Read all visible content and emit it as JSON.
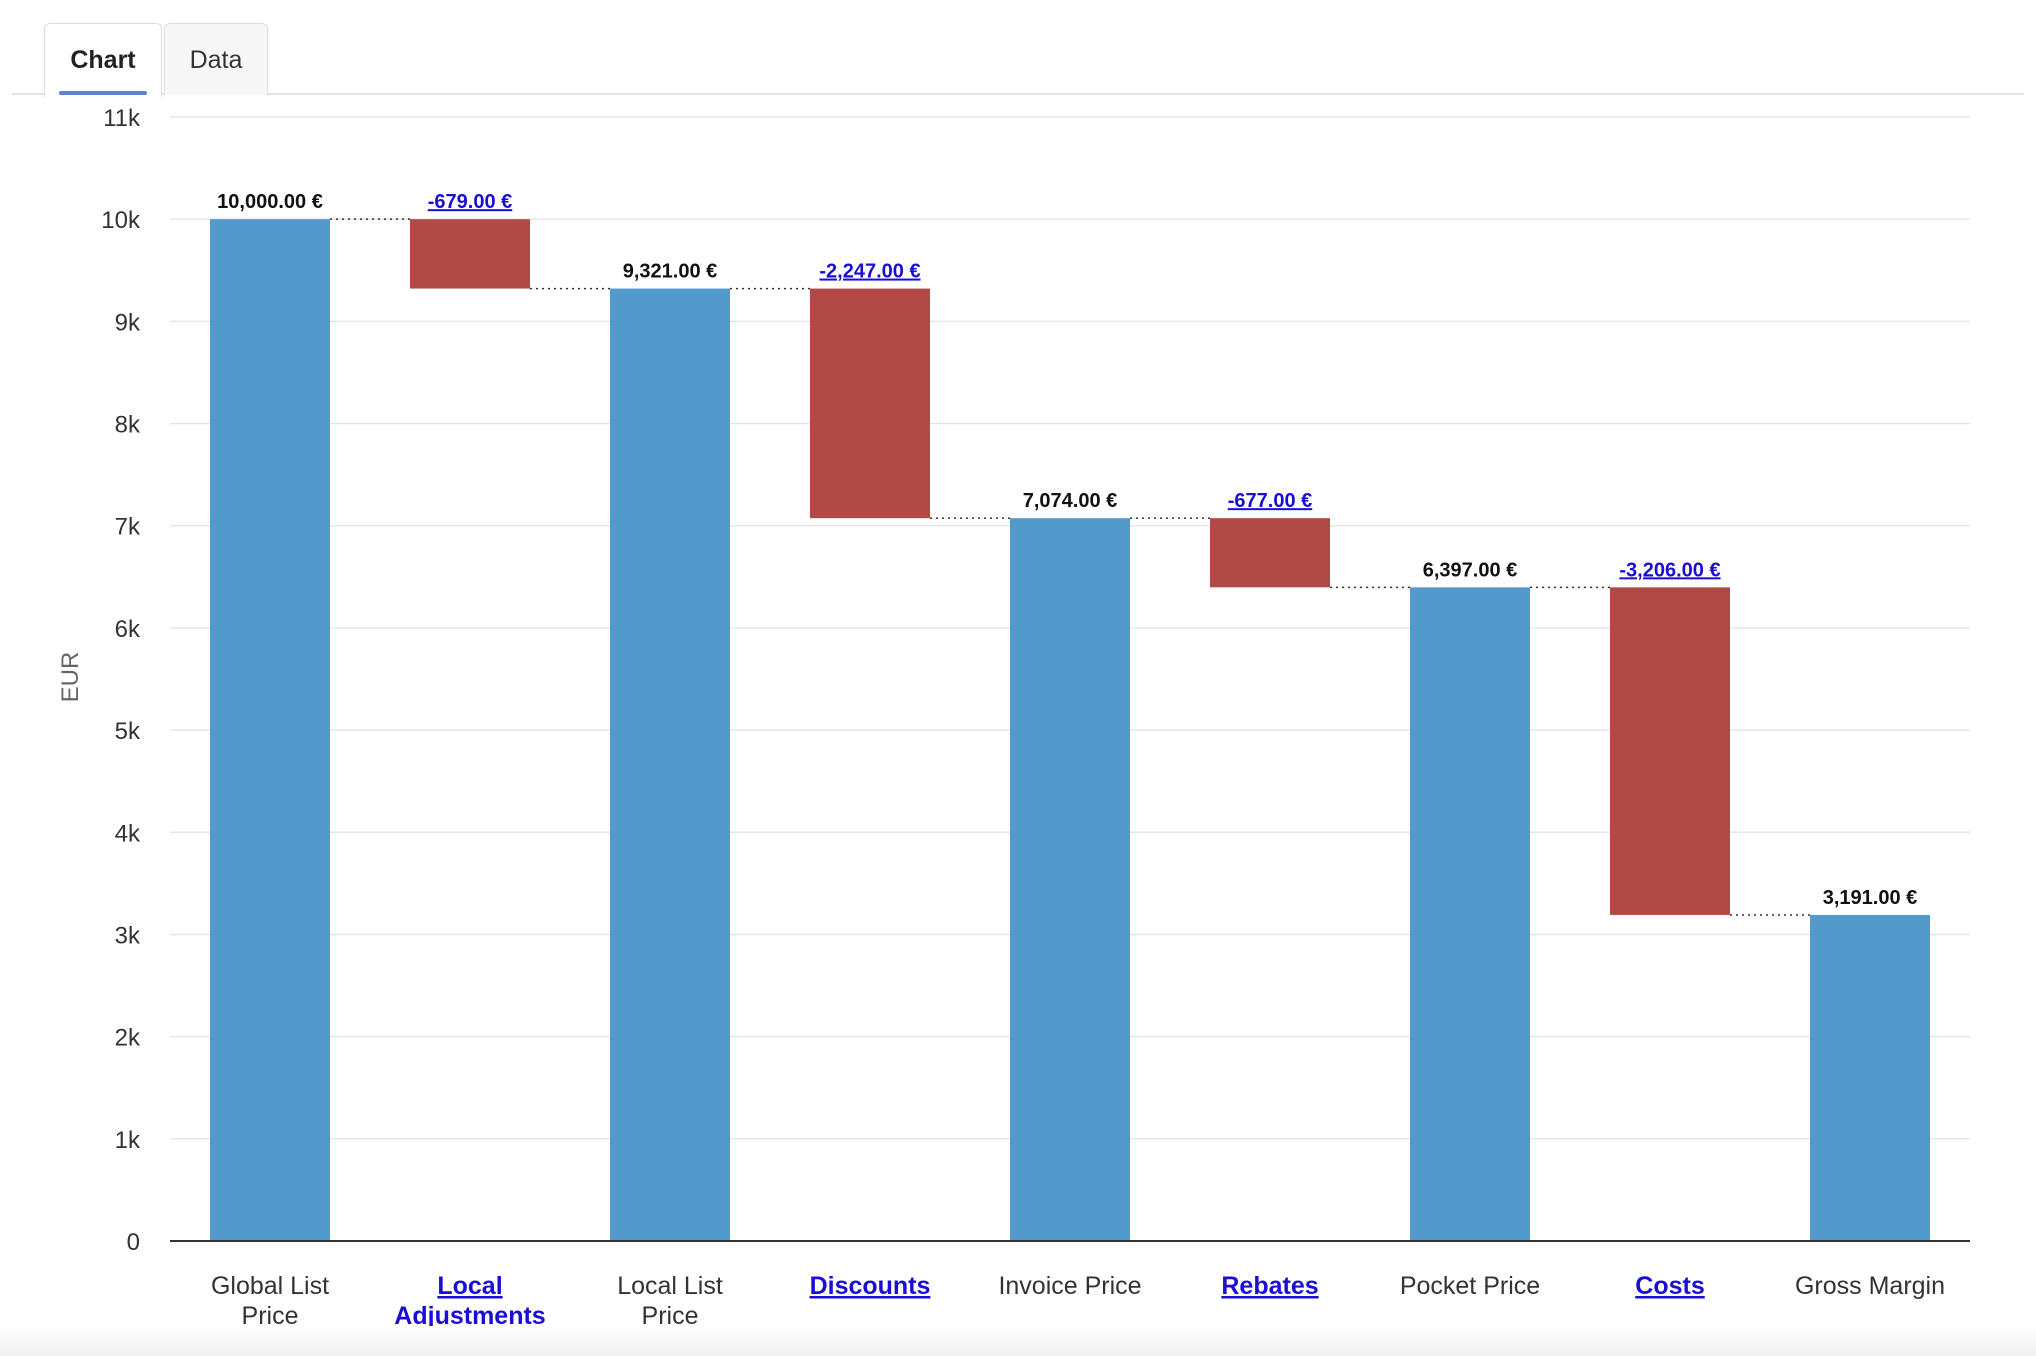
{
  "tabs": [
    {
      "label": "Chart",
      "active": true
    },
    {
      "label": "Data",
      "active": false
    }
  ],
  "chart_data": {
    "type": "bar",
    "subtype": "waterfall",
    "ylabel": "EUR",
    "ylim": [
      0,
      11000
    ],
    "yticks": [
      0,
      1000,
      2000,
      3000,
      4000,
      5000,
      6000,
      7000,
      8000,
      9000,
      10000,
      11000
    ],
    "ytick_labels": [
      "0",
      "1k",
      "2k",
      "3k",
      "4k",
      "5k",
      "6k",
      "7k",
      "8k",
      "9k",
      "10k",
      "11k"
    ],
    "grid": true,
    "legend": "none",
    "colors": {
      "total": "#5299cc",
      "decrease": "#b14a46",
      "link": "#1a0dd6"
    },
    "bars": [
      {
        "category": "Global List Price",
        "kind": "total",
        "start": 0,
        "end": 10000,
        "value_label": "10,000.00 €",
        "link": false
      },
      {
        "category": "Local Adjustments",
        "kind": "delta",
        "start": 10000,
        "end": 9321,
        "value_label": "-679.00 €",
        "link": true
      },
      {
        "category": "Local List Price",
        "kind": "total",
        "start": 0,
        "end": 9321,
        "value_label": "9,321.00 €",
        "link": false
      },
      {
        "category": "Discounts",
        "kind": "delta",
        "start": 9321,
        "end": 7074,
        "value_label": "-2,247.00 €",
        "link": true
      },
      {
        "category": "Invoice Price",
        "kind": "total",
        "start": 0,
        "end": 7074,
        "value_label": "7,074.00 €",
        "link": false
      },
      {
        "category": "Rebates",
        "kind": "delta",
        "start": 7074,
        "end": 6397,
        "value_label": "-677.00 €",
        "link": true
      },
      {
        "category": "Pocket Price",
        "kind": "total",
        "start": 0,
        "end": 6397,
        "value_label": "6,397.00 €",
        "link": false
      },
      {
        "category": "Costs",
        "kind": "delta",
        "start": 6397,
        "end": 3191,
        "value_label": "-3,206.00 €",
        "link": true
      },
      {
        "category": "Gross Margin",
        "kind": "total",
        "start": 0,
        "end": 3191,
        "value_label": "3,191.00 €",
        "link": false
      }
    ]
  }
}
